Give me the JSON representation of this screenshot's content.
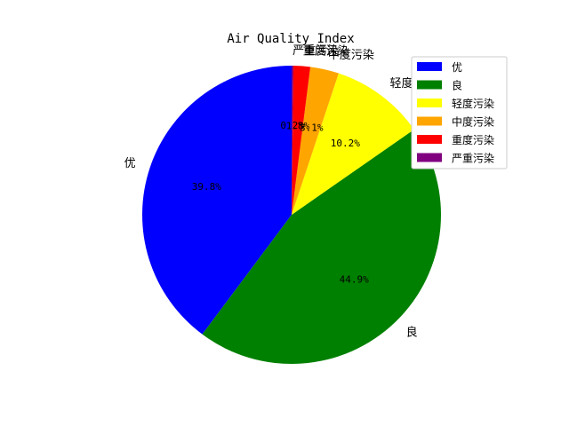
{
  "chart_data": {
    "type": "pie",
    "title": "Air Quality Index",
    "labels": [
      "优",
      "良",
      "轻度污染",
      "中度污染",
      "重度污染",
      "严重污染"
    ],
    "percent_labels": [
      "39.8%",
      "44.9%",
      "10.2%",
      "3.1%",
      "1.8%",
      "0.2%"
    ],
    "values": [
      39.8,
      44.9,
      10.2,
      3.1,
      1.8,
      0.2
    ],
    "colors": [
      "#0000ff",
      "#008000",
      "#ffff00",
      "#ffa500",
      "#ff0000",
      "#800080"
    ],
    "start_angle_deg": 90,
    "direction": "counterclockwise",
    "legend_placement": "upper-right"
  }
}
